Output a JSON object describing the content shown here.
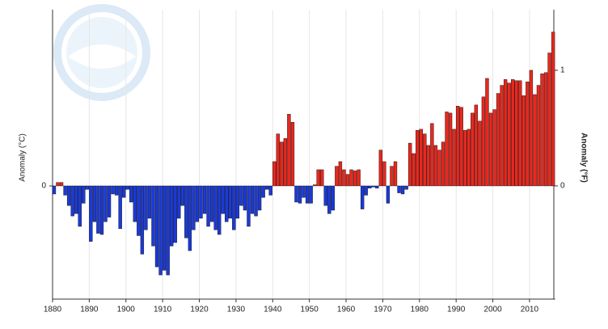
{
  "chart_data": {
    "type": "bar",
    "y_label": "Anomaly (°C)",
    "y2_label": "Anomaly (°F)",
    "x": [
      1880,
      1881,
      1882,
      1883,
      1884,
      1885,
      1886,
      1887,
      1888,
      1889,
      1890,
      1891,
      1892,
      1893,
      1894,
      1895,
      1896,
      1897,
      1898,
      1899,
      1900,
      1901,
      1902,
      1903,
      1904,
      1905,
      1906,
      1907,
      1908,
      1909,
      1910,
      1911,
      1912,
      1913,
      1914,
      1915,
      1916,
      1917,
      1918,
      1919,
      1920,
      1921,
      1922,
      1923,
      1924,
      1925,
      1926,
      1927,
      1928,
      1929,
      1930,
      1931,
      1932,
      1933,
      1934,
      1935,
      1936,
      1937,
      1938,
      1939,
      1940,
      1941,
      1942,
      1943,
      1944,
      1945,
      1946,
      1947,
      1948,
      1949,
      1950,
      1951,
      1952,
      1953,
      1954,
      1955,
      1956,
      1957,
      1958,
      1959,
      1960,
      1961,
      1962,
      1963,
      1964,
      1965,
      1966,
      1967,
      1968,
      1969,
      1970,
      1971,
      1972,
      1973,
      1974,
      1975,
      1976,
      1977,
      1978,
      1979,
      1980,
      1981,
      1982,
      1983,
      1984,
      1985,
      1986,
      1987,
      1988,
      1989,
      1990,
      1991,
      1992,
      1993,
      1994,
      1995,
      1996,
      1997,
      1998,
      1999,
      2000,
      2001,
      2002,
      2003,
      2004,
      2005,
      2006,
      2007,
      2008,
      2009,
      2010,
      2011,
      2012,
      2013,
      2014,
      2015,
      2016
    ],
    "series": [
      {
        "name": "Anomaly (°F)",
        "axis": "y2",
        "positive_color": "#e8281e",
        "negative_color": "#1b3ad6",
        "values": [
          -0.07,
          0.03,
          0.03,
          -0.08,
          -0.17,
          -0.26,
          -0.24,
          -0.35,
          -0.15,
          -0.03,
          -0.48,
          -0.31,
          -0.41,
          -0.42,
          -0.31,
          -0.27,
          -0.07,
          -0.08,
          -0.37,
          -0.1,
          -0.03,
          -0.14,
          -0.31,
          -0.43,
          -0.59,
          -0.38,
          -0.28,
          -0.52,
          -0.7,
          -0.77,
          -0.73,
          -0.77,
          -0.52,
          -0.49,
          -0.28,
          -0.17,
          -0.45,
          -0.56,
          -0.38,
          -0.31,
          -0.28,
          -0.24,
          -0.35,
          -0.31,
          -0.38,
          -0.42,
          -0.24,
          -0.31,
          -0.28,
          -0.38,
          -0.28,
          -0.17,
          -0.21,
          -0.35,
          -0.24,
          -0.26,
          -0.21,
          -0.1,
          -0.03,
          -0.08,
          0.21,
          0.45,
          0.38,
          0.41,
          0.62,
          0.55,
          -0.14,
          -0.15,
          -0.1,
          -0.15,
          -0.15,
          0.01,
          0.14,
          0.14,
          -0.17,
          -0.24,
          -0.21,
          0.17,
          0.21,
          0.14,
          0.1,
          0.14,
          0.13,
          0.14,
          -0.2,
          -0.08,
          -0.02,
          -0.01,
          -0.02,
          0.31,
          0.21,
          -0.15,
          0.17,
          0.21,
          -0.06,
          -0.07,
          -0.03,
          0.37,
          0.28,
          0.48,
          0.49,
          0.45,
          0.35,
          0.54,
          0.35,
          0.31,
          0.38,
          0.64,
          0.63,
          0.49,
          0.69,
          0.68,
          0.48,
          0.49,
          0.63,
          0.7,
          0.56,
          0.77,
          0.93,
          0.63,
          0.66,
          0.8,
          0.87,
          0.92,
          0.89,
          0.92,
          0.91,
          0.91,
          0.78,
          0.9,
          1.0,
          0.79,
          0.87,
          0.97,
          0.98,
          1.15,
          1.33
        ]
      }
    ],
    "xlim": [
      1880,
      2017
    ],
    "xticks": [
      1880,
      1890,
      1900,
      1910,
      1920,
      1930,
      1940,
      1950,
      1960,
      1970,
      1980,
      1990,
      2000,
      2010
    ],
    "ylim": [
      -0.544,
      0.847
    ],
    "yticks": [
      0
    ],
    "y2lim": [
      -0.979,
      1.524
    ],
    "y2ticks": [
      0,
      1
    ],
    "grid": true
  }
}
